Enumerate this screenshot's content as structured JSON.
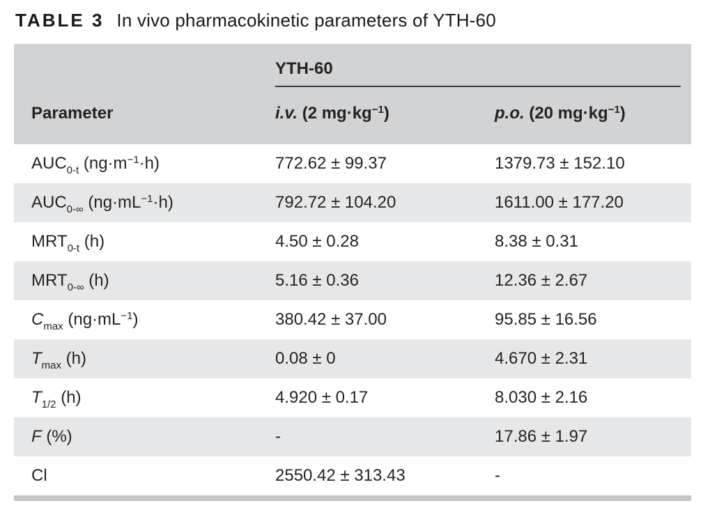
{
  "colors": {
    "page-bg": "#ffffff",
    "header-bg": "#d1d3d4",
    "row-alt-bg": "#e6e7e8",
    "text": "#262223",
    "title-text": "#1a1718",
    "rule": "#3a393a",
    "bottom-bar": "#c3c5c7"
  },
  "caption": {
    "tag": "TABLE 3",
    "text": "In vivo pharmacokinetic parameters of YTH-60"
  },
  "table": {
    "group_header": "YTH-60",
    "column_headers": {
      "parameter": [
        {
          "style": "normal",
          "text": "Parameter"
        }
      ],
      "iv": [
        {
          "style": "italic",
          "text": "i.v."
        },
        {
          "style": "normal",
          "text": " (2 mg·kg"
        },
        {
          "style": "sup",
          "text": "−1"
        },
        {
          "style": "normal",
          "text": ")"
        }
      ],
      "po": [
        {
          "style": "italic",
          "text": "p.o."
        },
        {
          "style": "normal",
          "text": " (20 mg·kg"
        },
        {
          "style": "sup",
          "text": "−1"
        },
        {
          "style": "normal",
          "text": ")"
        }
      ]
    },
    "rows": [
      {
        "parameter": [
          {
            "style": "normal",
            "text": "AUC"
          },
          {
            "style": "sub",
            "text": "0-t"
          },
          {
            "style": "normal",
            "text": " (ng·m"
          },
          {
            "style": "sup",
            "text": "−1"
          },
          {
            "style": "normal",
            "text": "·h)"
          }
        ],
        "iv": "772.62 ± 99.37",
        "po": "1379.73 ± 152.10"
      },
      {
        "parameter": [
          {
            "style": "normal",
            "text": "AUC"
          },
          {
            "style": "sub",
            "text": "0-∞"
          },
          {
            "style": "normal",
            "text": " (ng·mL"
          },
          {
            "style": "sup",
            "text": "−1"
          },
          {
            "style": "normal",
            "text": "·h)"
          }
        ],
        "iv": "792.72 ± 104.20",
        "po": "1611.00 ± 177.20"
      },
      {
        "parameter": [
          {
            "style": "normal",
            "text": "MRT"
          },
          {
            "style": "sub",
            "text": "0-t"
          },
          {
            "style": "normal",
            "text": " (h)"
          }
        ],
        "iv": "4.50 ± 0.28",
        "po": "8.38 ± 0.31"
      },
      {
        "parameter": [
          {
            "style": "normal",
            "text": "MRT"
          },
          {
            "style": "sub",
            "text": "0-∞"
          },
          {
            "style": "normal",
            "text": " (h)"
          }
        ],
        "iv": "5.16 ± 0.36",
        "po": "12.36 ± 2.67"
      },
      {
        "parameter": [
          {
            "style": "italic",
            "text": "C"
          },
          {
            "style": "sub",
            "text": "max"
          },
          {
            "style": "normal",
            "text": " (ng·mL"
          },
          {
            "style": "sup",
            "text": "−1"
          },
          {
            "style": "normal",
            "text": ")"
          }
        ],
        "iv": "380.42 ± 37.00",
        "po": "95.85 ± 16.56"
      },
      {
        "parameter": [
          {
            "style": "italic",
            "text": "T"
          },
          {
            "style": "sub",
            "text": "max"
          },
          {
            "style": "normal",
            "text": " (h)"
          }
        ],
        "iv": "0.08 ± 0",
        "po": "4.670 ± 2.31"
      },
      {
        "parameter": [
          {
            "style": "italic",
            "text": "T"
          },
          {
            "style": "sub",
            "text": "1/2"
          },
          {
            "style": "normal",
            "text": " (h)"
          }
        ],
        "iv": "4.920 ± 0.17",
        "po": "8.030 ± 2.16"
      },
      {
        "parameter": [
          {
            "style": "italic",
            "text": "F"
          },
          {
            "style": "normal",
            "text": " (%)"
          }
        ],
        "iv": "-",
        "po": "17.86 ± 1.97"
      },
      {
        "parameter": [
          {
            "style": "normal",
            "text": "Cl"
          }
        ],
        "iv": "2550.42 ± 313.43",
        "po": "-"
      }
    ]
  }
}
